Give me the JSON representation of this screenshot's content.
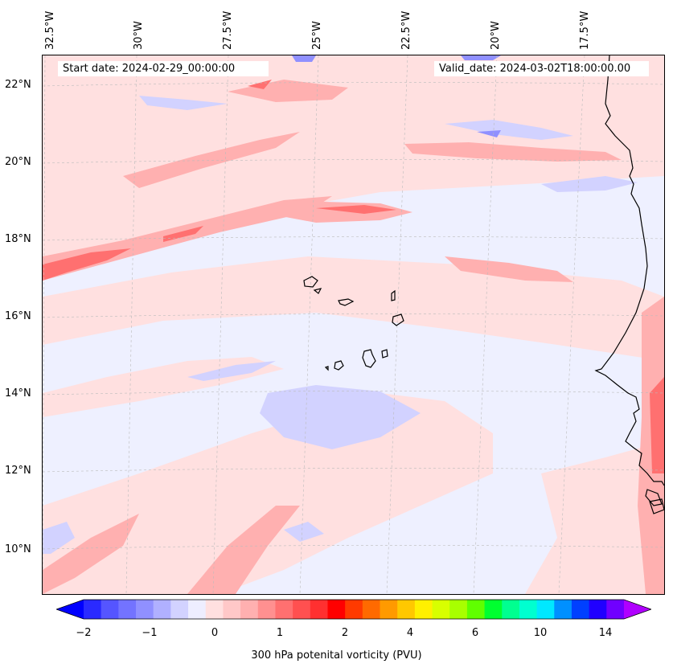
{
  "header": {
    "start_date": "Start date: 2024-02-29_00:00:00",
    "valid_date": "Valid_date: 2024-03-02T18:00:00.00"
  },
  "axes": {
    "longitudes": [
      "32.5°W",
      "30°W",
      "27.5°W",
      "25°W",
      "22.5°W",
      "20°W",
      "17.5°W"
    ],
    "latitudes": [
      "22°N",
      "20°N",
      "18°N",
      "16°N",
      "14°N",
      "12°N",
      "10°N"
    ]
  },
  "colorbar": {
    "label": "300 hPa potenital vorticity (PVU)",
    "ticks": [
      "−2",
      "−1",
      "0",
      "1",
      "2",
      "4",
      "6",
      "10",
      "14"
    ],
    "colors": [
      "#0000ff",
      "#2a2aff",
      "#5555ff",
      "#7373ff",
      "#9090ff",
      "#b0b0ff",
      "#d2d2ff",
      "#eeeeff",
      "#ffe0e0",
      "#ffc8c8",
      "#ffb0b0",
      "#ff9090",
      "#ff7070",
      "#ff5050",
      "#ff3030",
      "#ff0000",
      "#ff3a00",
      "#ff6a00",
      "#ff9a00",
      "#ffc800",
      "#fff000",
      "#d8ff00",
      "#a8ff00",
      "#60ff00",
      "#00ff30",
      "#00ff90",
      "#00ffd0",
      "#00e8ff",
      "#0090ff",
      "#0040ff",
      "#2000ff",
      "#7000ff",
      "#b000ff"
    ]
  },
  "colors": {
    "background_field": "#eef0ff",
    "light_positive": "#ffe0e0",
    "moderate_positive": "#ffb0b0",
    "strong_positive": "#ff7070",
    "light_negative": "#d2d2ff",
    "moderate_negative": "#9090ff"
  }
}
